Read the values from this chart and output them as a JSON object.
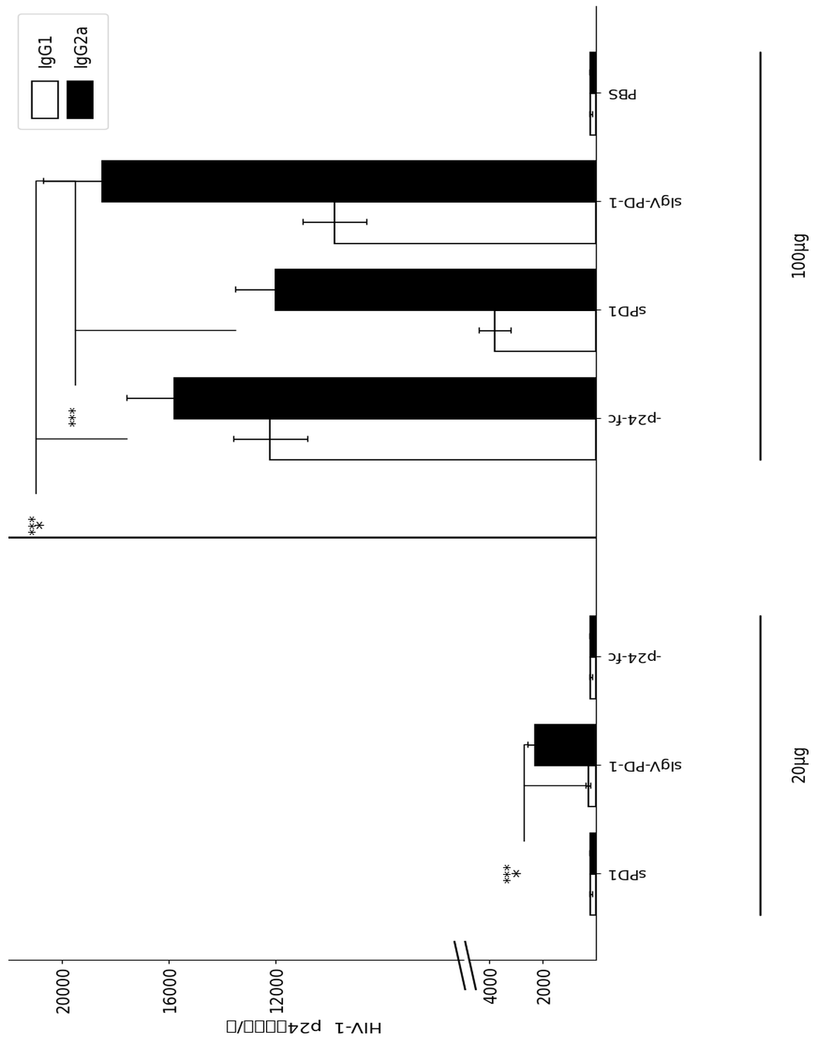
{
  "ylabel": "HIV-1  p24抗体滴度/页",
  "groups_20": [
    {
      "label": "sPD1",
      "IgG1": 200,
      "IgG2a": 200,
      "IgG1_err": 50,
      "IgG2a_err": 50
    },
    {
      "label": "sIgV-PD-1",
      "IgG1": 300,
      "IgG2a": 2300,
      "IgG1_err": 80,
      "IgG2a_err": 280
    },
    {
      "label": "-p24-fc",
      "IgG1": 200,
      "IgG2a": 200,
      "IgG1_err": 50,
      "IgG2a_err": 50
    }
  ],
  "groups_100": [
    {
      "label": "-p24-fc",
      "IgG1": 12200,
      "IgG2a": 15800,
      "IgG1_err": 1400,
      "IgG2a_err": 1800
    },
    {
      "label": "sPD1",
      "IgG1": 3800,
      "IgG2a": 12000,
      "IgG1_err": 600,
      "IgG2a_err": 1500
    },
    {
      "label": "sIgV-PD-1",
      "IgG1": 9800,
      "IgG2a": 18500,
      "IgG1_err": 1200,
      "IgG2a_err": 2200
    },
    {
      "label": "PBS",
      "IgG1": 200,
      "IgG2a": 200,
      "IgG1_err": 50,
      "IgG2a_err": 50
    }
  ],
  "yticks": [
    2000,
    4000,
    12000,
    16000,
    20000
  ],
  "ylim_high": 22000,
  "bar_width": 0.38,
  "IgG1_color": "#ffffff",
  "IgG2a_color": "#000000",
  "edge_color": "#000000",
  "legend_IgG1": "IgG1",
  "legend_IgG2a": "IgG2a",
  "dose_20": "20µg",
  "dose_100": "100µg"
}
